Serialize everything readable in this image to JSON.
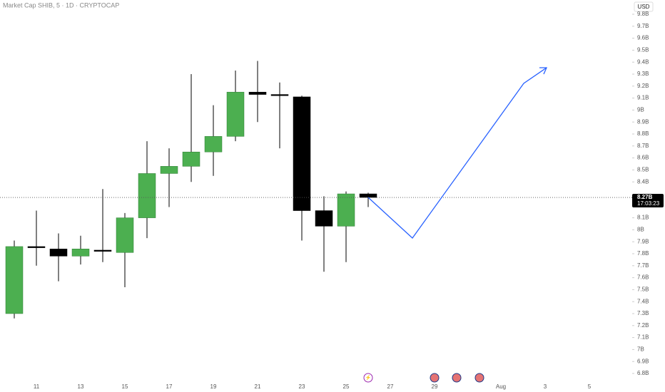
{
  "chart_data": {
    "type": "candlestick",
    "title": "Market Cap SHIB, 5 · 1D · CRYPTOCAP",
    "currency": "USD",
    "categories": [
      null,
      "11",
      null,
      "13",
      null,
      "15",
      null,
      "17",
      null,
      "19",
      null,
      "21",
      null,
      "23",
      null,
      "25",
      null,
      "27",
      null,
      "29",
      null,
      null,
      "Aug",
      null,
      "3",
      null,
      "5"
    ],
    "open": [
      7.3,
      7.86,
      7.84,
      7.78,
      7.83,
      7.81,
      8.1,
      8.47,
      8.53,
      8.65,
      8.78,
      9.15,
      9.13,
      9.11,
      8.16,
      8.03,
      8.3,
      null,
      null,
      null,
      null,
      null,
      null,
      null,
      null,
      null,
      null
    ],
    "high": [
      7.91,
      8.16,
      7.97,
      7.95,
      8.34,
      8.14,
      8.74,
      8.68,
      9.3,
      9.04,
      9.33,
      9.41,
      9.23,
      9.12,
      8.28,
      8.32,
      8.31,
      null,
      null,
      null,
      null,
      null,
      null,
      null,
      null,
      null,
      null
    ],
    "low": [
      7.26,
      7.7,
      7.57,
      7.71,
      7.73,
      7.52,
      7.93,
      8.19,
      8.4,
      8.45,
      8.74,
      8.9,
      8.68,
      7.91,
      7.65,
      7.73,
      8.19,
      null,
      null,
      null,
      null,
      null,
      null,
      null,
      null,
      null,
      null
    ],
    "close": [
      7.86,
      7.85,
      7.78,
      7.84,
      7.82,
      8.1,
      8.47,
      8.53,
      8.65,
      8.78,
      9.15,
      9.13,
      9.12,
      8.16,
      8.03,
      8.3,
      8.27,
      null,
      null,
      null,
      null,
      null,
      null,
      null,
      null,
      null,
      null
    ],
    "up_color": "#4caf50",
    "down_color": "#000000",
    "ylim": [
      6.8,
      9.8
    ],
    "yticks": [
      {
        "value": 9.8,
        "label": "9.8B"
      },
      {
        "value": 9.7,
        "label": "9.7B"
      },
      {
        "value": 9.6,
        "label": "9.6B"
      },
      {
        "value": 9.5,
        "label": "9.5B"
      },
      {
        "value": 9.4,
        "label": "9.4B"
      },
      {
        "value": 9.3,
        "label": "9.3B"
      },
      {
        "value": 9.2,
        "label": "9.2B"
      },
      {
        "value": 9.1,
        "label": "9.1B"
      },
      {
        "value": 9,
        "label": "9B"
      },
      {
        "value": 8.9,
        "label": "8.9B"
      },
      {
        "value": 8.8,
        "label": "8.8B"
      },
      {
        "value": 8.7,
        "label": "8.7B"
      },
      {
        "value": 8.6,
        "label": "8.6B"
      },
      {
        "value": 8.5,
        "label": "8.5B"
      },
      {
        "value": 8.4,
        "label": "8.4B"
      },
      {
        "value": 8.1,
        "label": "8.1B"
      },
      {
        "value": 8,
        "label": "8B"
      },
      {
        "value": 7.9,
        "label": "7.9B"
      },
      {
        "value": 7.8,
        "label": "7.8B"
      },
      {
        "value": 7.7,
        "label": "7.7B"
      },
      {
        "value": 7.6,
        "label": "7.6B"
      },
      {
        "value": 7.5,
        "label": "7.5B"
      },
      {
        "value": 7.4,
        "label": "7.4B"
      },
      {
        "value": 7.3,
        "label": "7.3B"
      },
      {
        "value": 7.2,
        "label": "7.2B"
      },
      {
        "value": 7.1,
        "label": "7.1B"
      },
      {
        "value": 7,
        "label": "7B"
      },
      {
        "value": 6.9,
        "label": "6.9B"
      },
      {
        "value": 6.8,
        "label": "6.8B"
      }
    ],
    "last_price": {
      "value": 8.27,
      "label": "8.27B"
    },
    "countdown": "17:03:23"
  }
}
